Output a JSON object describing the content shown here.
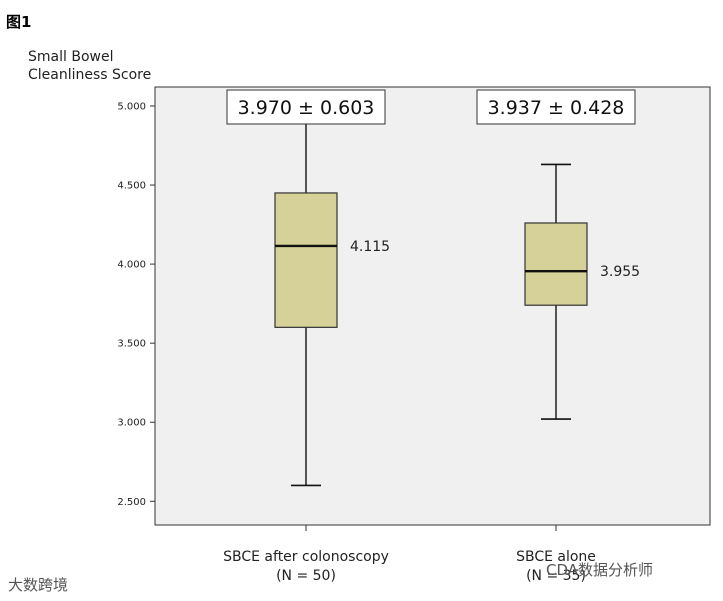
{
  "figure_label": "图1",
  "watermarks": {
    "left": "大数跨境",
    "right": "CDA数据分析师"
  },
  "chart_data": {
    "type": "box",
    "ylabel_lines": [
      "Small Bowel",
      "Cleanliness Score"
    ],
    "xlabel": "",
    "ylim": [
      2.35,
      5.12
    ],
    "yticks": [
      2.5,
      3.0,
      3.5,
      4.0,
      4.5,
      5.0
    ],
    "ytick_labels": [
      "2.500",
      "3.000",
      "3.500",
      "4.000",
      "4.500",
      "5.000"
    ],
    "grid": false,
    "colors": {
      "plot_bg": "#f0f0f0",
      "box_fill": "#d6d198",
      "frame": "#333333"
    },
    "groups": [
      {
        "category": "SBCE after colonoscopy",
        "n_label": "(N = 50)",
        "whisker_low": 2.6,
        "q1": 3.6,
        "median": 4.115,
        "q3": 4.45,
        "whisker_high": 4.9,
        "median_label": "4.115",
        "mean_sd_label": "3.970 ± 0.603"
      },
      {
        "category": "SBCE alone",
        "n_label": "(N = 35)",
        "whisker_low": 3.02,
        "q1": 3.74,
        "median": 3.955,
        "q3": 4.26,
        "whisker_high": 4.63,
        "median_label": "3.955",
        "mean_sd_label": "3.937 ± 0.428"
      }
    ]
  }
}
